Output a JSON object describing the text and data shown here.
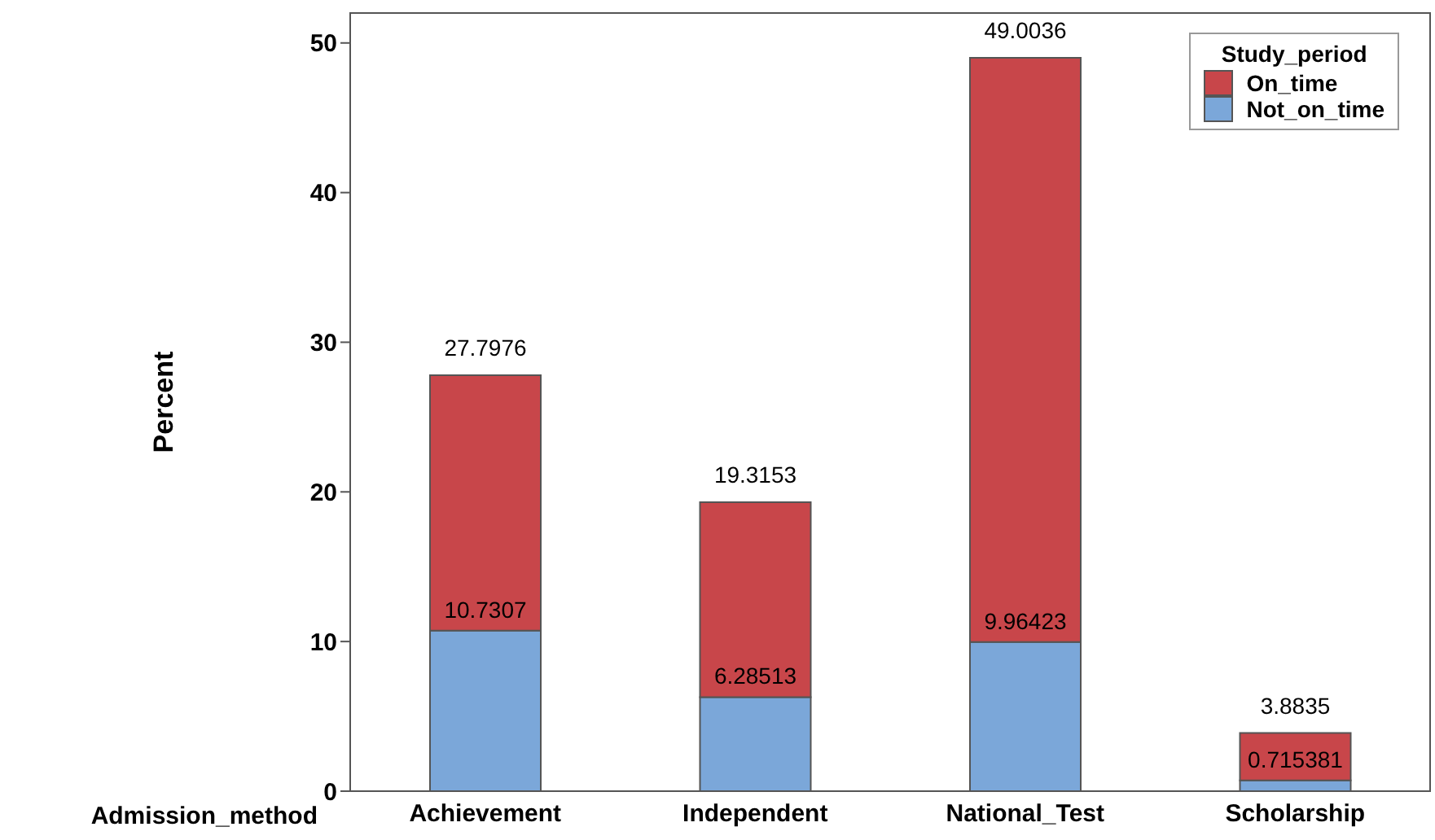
{
  "chart_data": {
    "type": "bar",
    "stacked": true,
    "ylabel": "Percent",
    "xlabel": "Admission_method",
    "legend_title": "Study_period",
    "legend": "top right",
    "grid": false,
    "categories": [
      "Achievement",
      "Independent",
      "National_Test",
      "Scholarship"
    ],
    "series": [
      {
        "name": "Not_on_time",
        "color": "#7ba7d9",
        "values": [
          10.7307,
          6.28513,
          9.96423,
          0.715381
        ],
        "value_labels": [
          "10.7307",
          "6.28513",
          "9.96423",
          "0.715381"
        ]
      },
      {
        "name": "On_time",
        "color": "#c8464a",
        "values": [
          17.0669,
          13.03017,
          39.03937,
          3.168119
        ]
      }
    ],
    "totals": [
      "27.7976",
      "19.3153",
      "49.0036",
      "3.8835"
    ],
    "ylim": [
      0,
      52
    ],
    "yticks": [
      0,
      10,
      20,
      30,
      40,
      50
    ]
  }
}
